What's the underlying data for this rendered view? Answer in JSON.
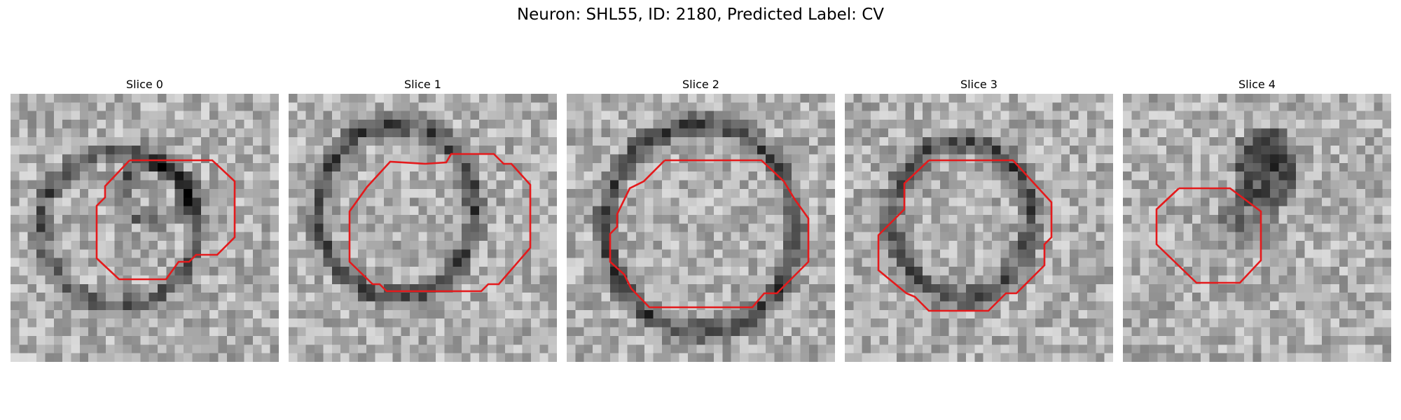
{
  "figure": {
    "title": "Neuron: SHL55, ID: 2180, Predicted Label: CV"
  },
  "panels": [
    {
      "title": "Slice 0",
      "image_kind": "grayscale-em-patch",
      "contour_color": "#e41a1c"
    },
    {
      "title": "Slice 1",
      "image_kind": "grayscale-em-patch",
      "contour_color": "#e41a1c"
    },
    {
      "title": "Slice 2",
      "image_kind": "grayscale-em-patch",
      "contour_color": "#e41a1c"
    },
    {
      "title": "Slice 3",
      "image_kind": "grayscale-em-patch",
      "contour_color": "#e41a1c"
    },
    {
      "title": "Slice 4",
      "image_kind": "grayscale-em-patch",
      "contour_color": "#e41a1c"
    }
  ]
}
